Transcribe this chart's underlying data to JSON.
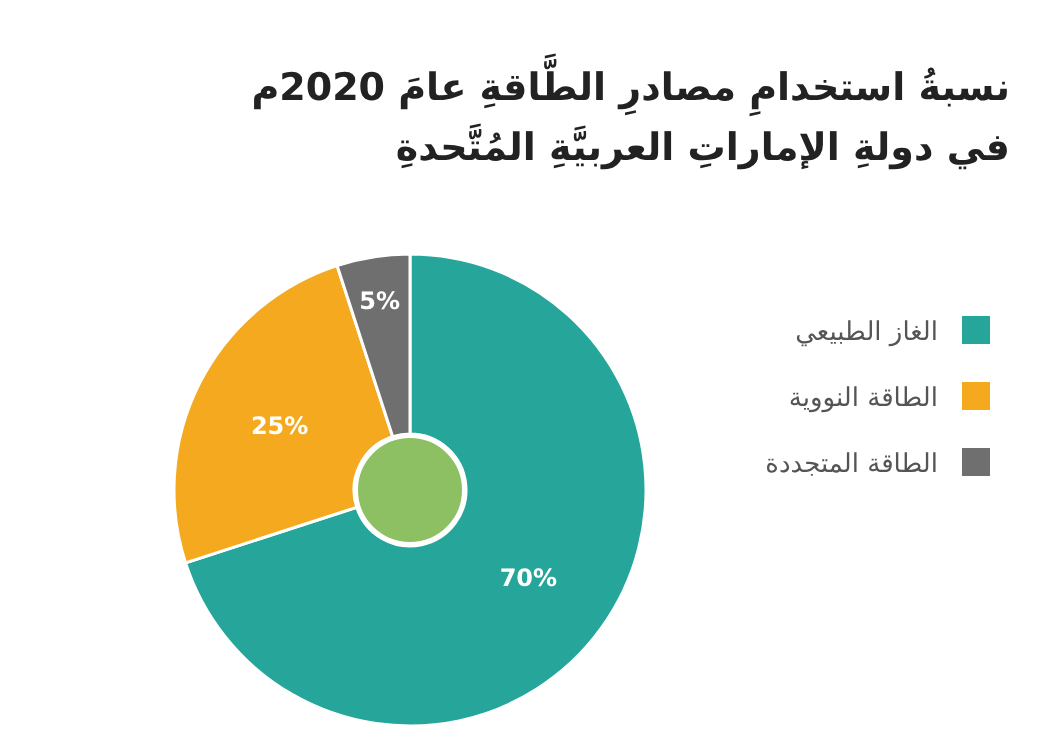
{
  "chart_data": {
    "type": "donut",
    "title": "نسبةُ استخدامِ مصادرِ الطَّاقةِ عامَ 2020م\nفي دولةِ الإماراتِ العربيَّةِ المُتَّحدةِ",
    "categories": [
      "الغاز الطبيعي",
      "الطاقة النووية",
      "الطاقة المتجددة"
    ],
    "values": [
      70,
      25,
      5
    ],
    "colors": [
      "#26a69a",
      "#f5a91f",
      "#6f6f6f"
    ],
    "value_labels": [
      "70%",
      "25%",
      "5%"
    ],
    "legend": "right"
  }
}
